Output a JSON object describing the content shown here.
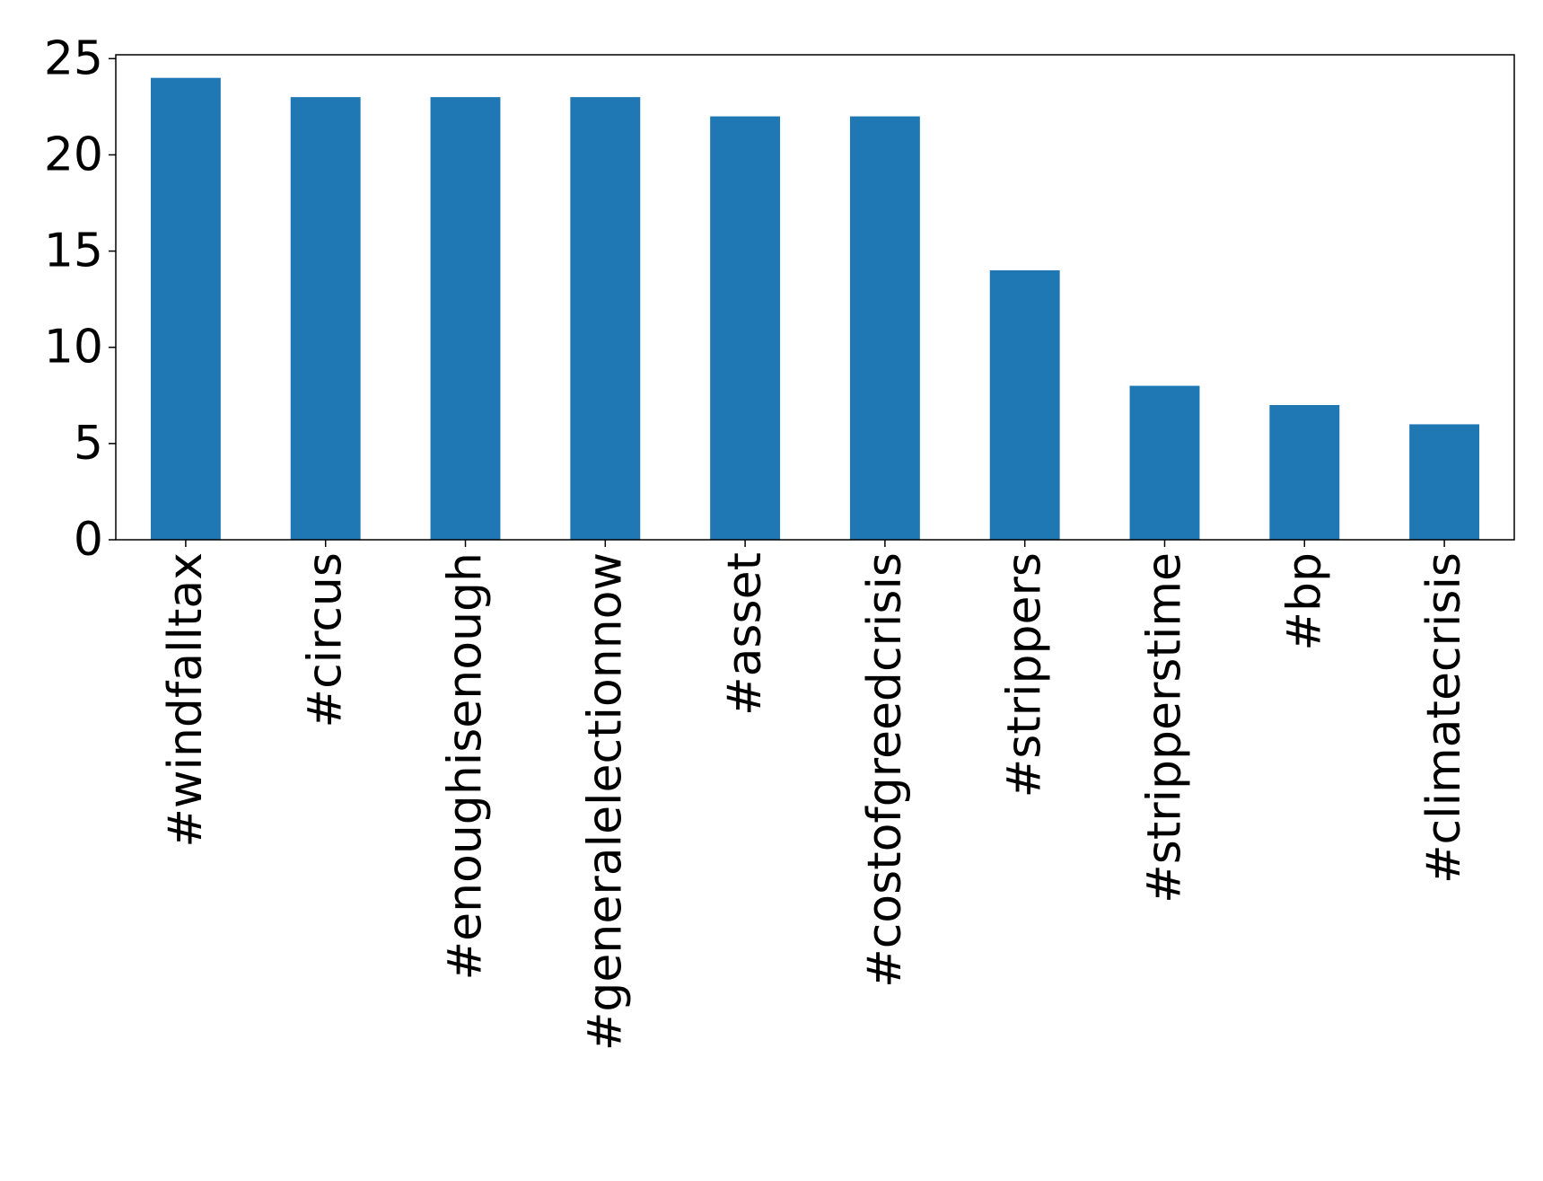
{
  "chart_data": {
    "type": "bar",
    "categories": [
      "#windfalltax",
      "#circus",
      "#enoughisenough",
      "#generalelectionnow",
      "#asset",
      "#costofgreedcrisis",
      "#strippers",
      "#stripperstime",
      "#bp",
      "#climatecrisis"
    ],
    "values": [
      24,
      23,
      23,
      23,
      22,
      22,
      14,
      8,
      7,
      6
    ],
    "color": "#1f77b4",
    "ylim": [
      0,
      25.2
    ],
    "yticks": [
      0,
      5,
      10,
      15,
      20,
      25
    ],
    "grid": false
  }
}
